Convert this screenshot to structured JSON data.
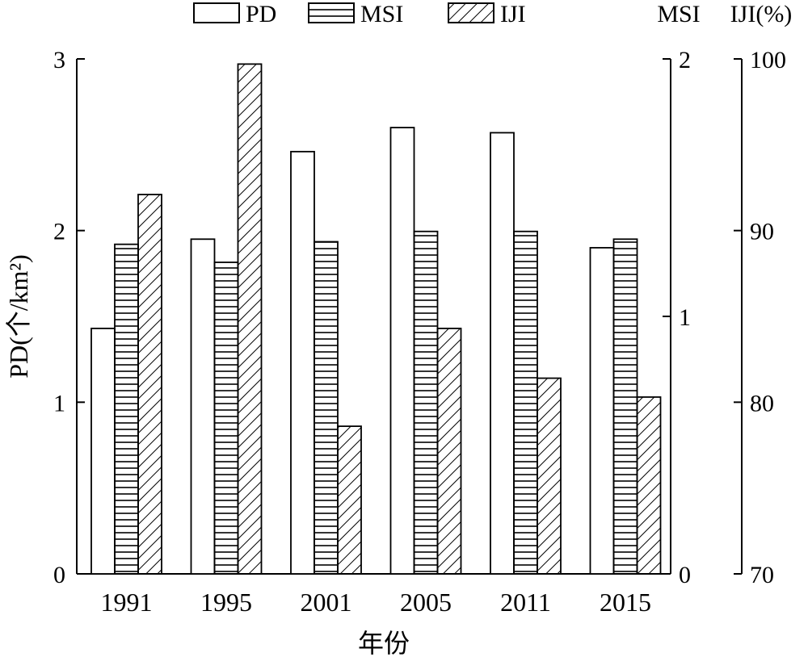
{
  "chart_data": {
    "type": "bar",
    "categories": [
      "1991",
      "1995",
      "2001",
      "2005",
      "2011",
      "2015"
    ],
    "series": [
      {
        "name": "PD",
        "axis": "left",
        "pattern": "plain",
        "values": [
          1.43,
          1.95,
          2.46,
          2.6,
          2.57,
          1.9
        ]
      },
      {
        "name": "MSI",
        "axis": "right1",
        "pattern": "horizontal-lines",
        "values": [
          1.28,
          1.21,
          1.29,
          1.33,
          1.33,
          1.3
        ]
      },
      {
        "name": "IJI",
        "axis": "right2",
        "pattern": "diagonal-lines",
        "values": [
          92.1,
          99.7,
          78.6,
          84.3,
          81.4,
          80.3
        ]
      }
    ],
    "axes": {
      "left": {
        "label": "PD(个/km²)",
        "ylim": [
          0,
          3
        ],
        "ticks": [
          "0",
          "1",
          "2",
          "3"
        ]
      },
      "right1": {
        "label": "MSI",
        "ylim": [
          0,
          2
        ],
        "ticks": [
          "0",
          "1",
          "2"
        ]
      },
      "right2": {
        "label": "IJI(%)",
        "ylim": [
          70,
          100
        ],
        "ticks": [
          "70",
          "80",
          "90",
          "100"
        ]
      }
    },
    "xlabel": "年份",
    "legend_position": "top",
    "grid": false,
    "colors": {
      "bar_fill": "#ffffff",
      "bar_stroke": "#000000",
      "pattern": "#000000"
    }
  }
}
